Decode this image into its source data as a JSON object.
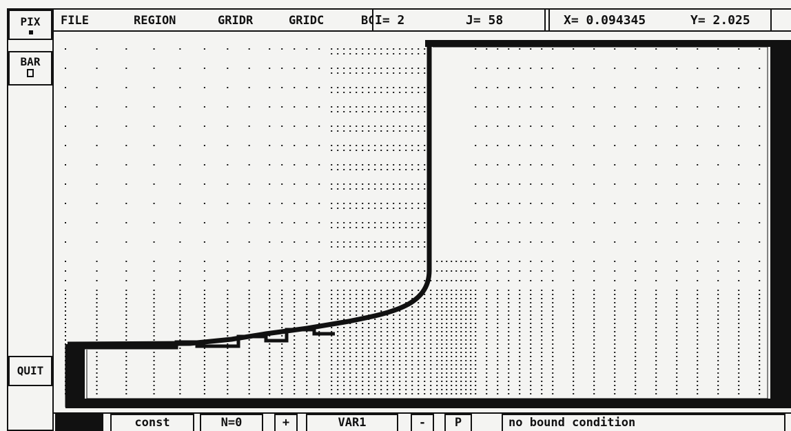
{
  "sidebar": {
    "pix_label": "PIX",
    "bar_label": "BAR",
    "quit_label": "QUIT"
  },
  "menu": {
    "items": [
      "FILE",
      "REGION",
      "GRIDR",
      "GRIDC",
      "BC"
    ]
  },
  "status": {
    "i_text": "I= 2",
    "j_text": "J= 58",
    "x_text": "X= 0.094345",
    "y_text": "Y= 2.025"
  },
  "bottom": {
    "const_label": "const",
    "n_label": "N=0",
    "plus_label": "+",
    "var_label": "VAR1",
    "minus_label": "-",
    "p_label": "P",
    "condition_text": "no bound condition"
  },
  "colors": {
    "ink": "#111111",
    "paper": "#f4f4f2"
  }
}
